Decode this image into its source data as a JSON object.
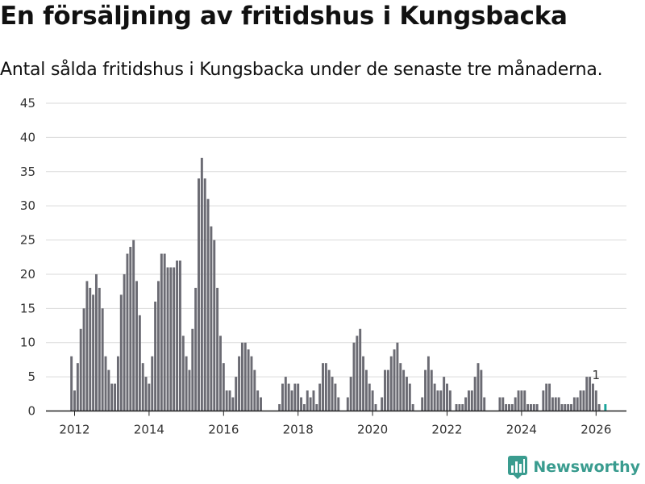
{
  "title": "En försäljning av fritidshus i Kungsbacka",
  "subtitle": "Antal sålda fritidshus i Kungsbacka under de senaste tre månaderna.",
  "brand": {
    "name": "Newsworthy",
    "color": "#3a9c8f"
  },
  "colors": {
    "bars": "#6b6b73",
    "highlight": "#1aa39a"
  },
  "chart_data": {
    "type": "bar",
    "title": "",
    "xlabel": "",
    "ylabel": "",
    "ylim": [
      0,
      45
    ],
    "yticks": [
      0,
      5,
      10,
      15,
      20,
      25,
      30,
      35,
      40,
      45
    ],
    "xticks": [
      2012,
      2014,
      2016,
      2018,
      2020,
      2022,
      2024,
      2026
    ],
    "x_start": "2011-12",
    "x_end": "2026-01",
    "grid": true,
    "legend": "none",
    "annotation": {
      "x": "2026-01",
      "label": "1"
    },
    "values": [
      8,
      3,
      7,
      12,
      15,
      19,
      18,
      17,
      20,
      18,
      15,
      8,
      6,
      4,
      4,
      8,
      17,
      20,
      23,
      24,
      25,
      19,
      14,
      7,
      5,
      4,
      8,
      16,
      19,
      23,
      23,
      21,
      21,
      21,
      22,
      22,
      11,
      8,
      6,
      12,
      18,
      34,
      37,
      34,
      31,
      27,
      25,
      18,
      11,
      7,
      3,
      3,
      2,
      5,
      8,
      10,
      10,
      9,
      8,
      6,
      3,
      2,
      0,
      0,
      0,
      0,
      0,
      1,
      4,
      5,
      4,
      3,
      4,
      4,
      2,
      1,
      3,
      2,
      3,
      1,
      4,
      7,
      7,
      6,
      5,
      4,
      2,
      0,
      0,
      2,
      5,
      10,
      11,
      12,
      8,
      6,
      4,
      3,
      1,
      0,
      2,
      6,
      6,
      8,
      9,
      10,
      7,
      6,
      5,
      4,
      1,
      0,
      0,
      2,
      6,
      8,
      6,
      4,
      3,
      3,
      5,
      4,
      3,
      0,
      1,
      1,
      1,
      2,
      3,
      3,
      5,
      7,
      6,
      2,
      0,
      0,
      0,
      0,
      2,
      2,
      1,
      1,
      1,
      2,
      3,
      3,
      3,
      1,
      1,
      1,
      1,
      0,
      3,
      4,
      4,
      2,
      2,
      2,
      1,
      1,
      1,
      1,
      2,
      2,
      3,
      3,
      5,
      5,
      4,
      3,
      1,
      0,
      1
    ]
  }
}
